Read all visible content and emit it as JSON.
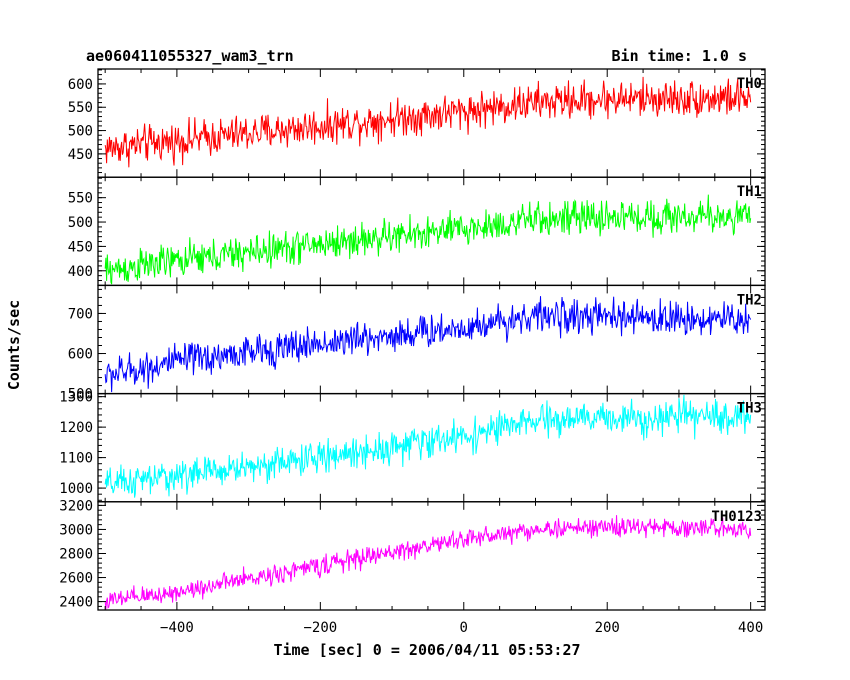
{
  "header": {
    "title": "ae060411055327_wam3_trn",
    "bin_time": "Bin time: 1.0 s"
  },
  "chart_data": {
    "type": "line",
    "title": "ae060411055327_wam3_trn",
    "subtitle": "Bin time: 1.0 s",
    "xlabel": "Time [sec] 0 = 2006/04/11 05:53:27",
    "ylabel": "Counts/sec",
    "xlim": [
      -510,
      420
    ],
    "x_ticks": [
      -400,
      -200,
      0,
      200,
      400
    ],
    "x_tick_labels": [
      "−400",
      "−200",
      "0",
      "200",
      "400"
    ],
    "grid": false,
    "panels": [
      {
        "name": "TH0",
        "color": "#ff0000",
        "ylim": [
          400,
          632
        ],
        "y_ticks": [
          450,
          500,
          550,
          600
        ],
        "trend": {
          "x": [
            -500,
            -400,
            -200,
            0,
            100,
            200,
            400
          ],
          "y": [
            462,
            478,
            510,
            542,
            560,
            568,
            570
          ]
        },
        "noise_amplitude": 34
      },
      {
        "name": "TH1",
        "color": "#00ff00",
        "ylim": [
          370,
          592
        ],
        "y_ticks": [
          400,
          450,
          500,
          550
        ],
        "trend": {
          "x": [
            -500,
            -400,
            -200,
            0,
            100,
            200,
            400
          ],
          "y": [
            400,
            420,
            455,
            485,
            505,
            510,
            512
          ]
        },
        "noise_amplitude": 30
      },
      {
        "name": "TH2",
        "color": "#0000ff",
        "ylim": [
          500,
          770
        ],
        "y_ticks": [
          500,
          600,
          700
        ],
        "trend": {
          "x": [
            -500,
            -400,
            -200,
            0,
            100,
            200,
            400
          ],
          "y": [
            545,
            580,
            625,
            665,
            695,
            690,
            685
          ]
        },
        "noise_amplitude": 36
      },
      {
        "name": "TH3",
        "color": "#00ffff",
        "ylim": [
          955,
          1310
        ],
        "y_ticks": [
          1000,
          1100,
          1200,
          1300
        ],
        "trend": {
          "x": [
            -500,
            -400,
            -200,
            0,
            100,
            200,
            400
          ],
          "y": [
            1010,
            1040,
            1100,
            1170,
            1220,
            1230,
            1235
          ]
        },
        "noise_amplitude": 45
      },
      {
        "name": "TH0123",
        "color": "#ff00ff",
        "ylim": [
          2330,
          3230
        ],
        "y_ticks": [
          2400,
          2600,
          2800,
          3000,
          3200
        ],
        "trend": {
          "x": [
            -500,
            -400,
            -200,
            0,
            100,
            200,
            400
          ],
          "y": [
            2400,
            2480,
            2700,
            2920,
            3000,
            3020,
            3010
          ]
        },
        "noise_amplitude": 70
      }
    ]
  }
}
